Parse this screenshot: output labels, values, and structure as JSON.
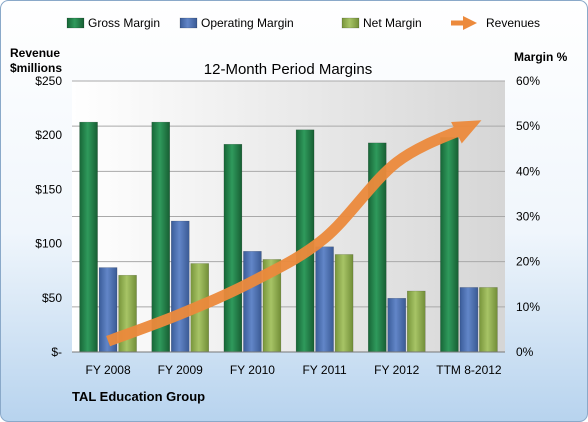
{
  "chart_data": {
    "type": "bar",
    "title": "12-Month Period Margins",
    "company": "TAL Education Group",
    "left_axis_label": [
      "Revenue",
      "$millions"
    ],
    "right_axis_label": "Margin %",
    "categories": [
      "FY 2008",
      "FY 2009",
      "FY 2010",
      "FY 2011",
      "FY 2012",
      "TTM 8-2012"
    ],
    "left_ticks": [
      "$-",
      "$50",
      "$100",
      "$150",
      "$200",
      "$250"
    ],
    "right_ticks": [
      "0%",
      "10%",
      "20%",
      "30%",
      "40%",
      "50%",
      "60%"
    ],
    "ylim_left": [
      0,
      250
    ],
    "ylim_right": [
      0,
      60
    ],
    "legend_position": "top",
    "series": [
      {
        "name": "Gross Margin",
        "type": "bar",
        "axis": "right",
        "unit": "%",
        "color": "#1e7a45",
        "values": [
          50.9,
          50.9,
          46.0,
          49.2,
          46.3,
          47.5
        ]
      },
      {
        "name": "Operating Margin",
        "type": "bar",
        "axis": "right",
        "unit": "%",
        "color": "#4a6faf",
        "values": [
          18.7,
          29.0,
          22.3,
          23.3,
          11.9,
          14.3
        ]
      },
      {
        "name": "Net Margin",
        "type": "bar",
        "axis": "right",
        "unit": "%",
        "color": "#8fad4e",
        "values": [
          17.0,
          19.6,
          20.5,
          21.6,
          13.5,
          14.3
        ]
      },
      {
        "name": "Revenues",
        "type": "line",
        "axis": "left",
        "unit": "$M",
        "color": "#ec8a3c",
        "values": [
          10,
          35,
          65,
          105,
          175,
          208
        ]
      }
    ],
    "grid": true
  }
}
